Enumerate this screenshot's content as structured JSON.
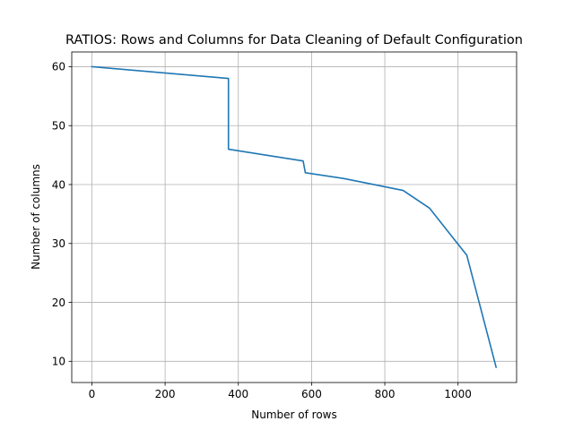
{
  "chart_data": {
    "type": "line",
    "title": "RATIOS: Rows and Columns for Data Cleaning of Default Configuration",
    "xlabel": "Number of rows",
    "ylabel": "Number of columns",
    "xlim": [
      -55,
      1160
    ],
    "ylim": [
      6.4,
      62.5
    ],
    "xticks": [
      0,
      200,
      400,
      600,
      800,
      1000
    ],
    "yticks": [
      10,
      20,
      30,
      40,
      50,
      60
    ],
    "xtick_labels": [
      "0",
      "200",
      "400",
      "600",
      "800",
      "1000"
    ],
    "ytick_labels": [
      "10",
      "20",
      "30",
      "40",
      "50",
      "60"
    ],
    "grid": true,
    "legend": "none",
    "series": [
      {
        "color": "#1f77b4",
        "x": [
          0,
          373,
          373,
          577,
          583,
          690,
          850,
          922,
          1024,
          1104
        ],
        "y": [
          60,
          58,
          46,
          44,
          42,
          41,
          39,
          36,
          28,
          9
        ]
      }
    ]
  }
}
